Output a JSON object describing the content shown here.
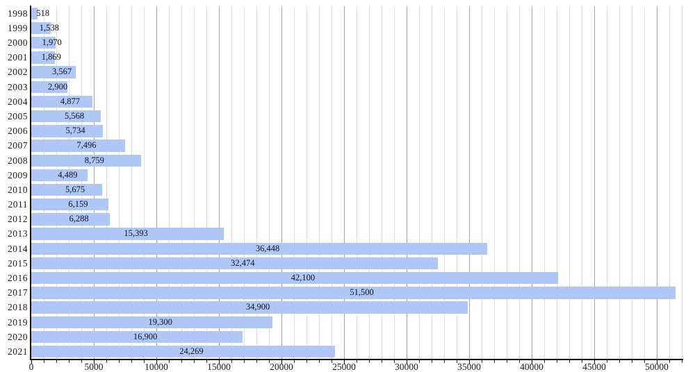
{
  "chart_data": {
    "type": "bar",
    "orientation": "horizontal",
    "title": "",
    "xlabel": "",
    "ylabel": "",
    "categories": [
      "1998",
      "1999",
      "2000",
      "2001",
      "2002",
      "2003",
      "2004",
      "2005",
      "2006",
      "2007",
      "2008",
      "2009",
      "2010",
      "2011",
      "2012",
      "2013",
      "2014",
      "2015",
      "2016",
      "2017",
      "2018",
      "2019",
      "2020",
      "2021"
    ],
    "values": [
      518,
      1538,
      1970,
      1869,
      3567,
      2900,
      4877,
      5568,
      5734,
      7496,
      8759,
      4489,
      5675,
      6159,
      6288,
      15393,
      36448,
      32474,
      42100,
      51500,
      34900,
      19300,
      16900,
      24269
    ],
    "value_labels": [
      "518",
      "1,538",
      "1,970",
      "1,869",
      "3,567",
      "2,900",
      "4,877",
      "5,568",
      "5,734",
      "7,496",
      "8,759",
      "4,489",
      "5,675",
      "6,159",
      "6,288",
      "15,393",
      "36,448",
      "32,474",
      "42,100",
      "51,500",
      "34,900",
      "19,300",
      "16,900",
      "24,269"
    ],
    "xlim": [
      0,
      52100
    ],
    "x_major_ticks": [
      {
        "value": 0,
        "label": "0"
      },
      {
        "value": 5000,
        "label": "5000"
      },
      {
        "value": 10000,
        "label": "10000"
      },
      {
        "value": 15000,
        "label": "15000"
      },
      {
        "value": 20000,
        "label": "20000"
      },
      {
        "value": 25000,
        "label": "25000"
      },
      {
        "value": 30000,
        "label": "30000"
      },
      {
        "value": 35000,
        "label": "35000"
      },
      {
        "value": 40000,
        "label": "40000"
      },
      {
        "value": 45000,
        "label": "45000"
      },
      {
        "value": 50000,
        "label": "50000"
      }
    ],
    "x_minor_tick_step": 1000,
    "grid": {
      "vertical_minor_step": 1000,
      "vertical_major_step": 5000,
      "horizontal": false
    },
    "legend": "none",
    "colors": {
      "bar_fill": "#aec7f5",
      "grid_minor": "#dedede",
      "grid_major": "#a3a3a3",
      "axis": "#000000",
      "tick_minor": "#333333",
      "tick_major": "#000000",
      "text": "#1b1b1b",
      "bar_label_text": "#10101e",
      "background": "#ffffff"
    }
  }
}
